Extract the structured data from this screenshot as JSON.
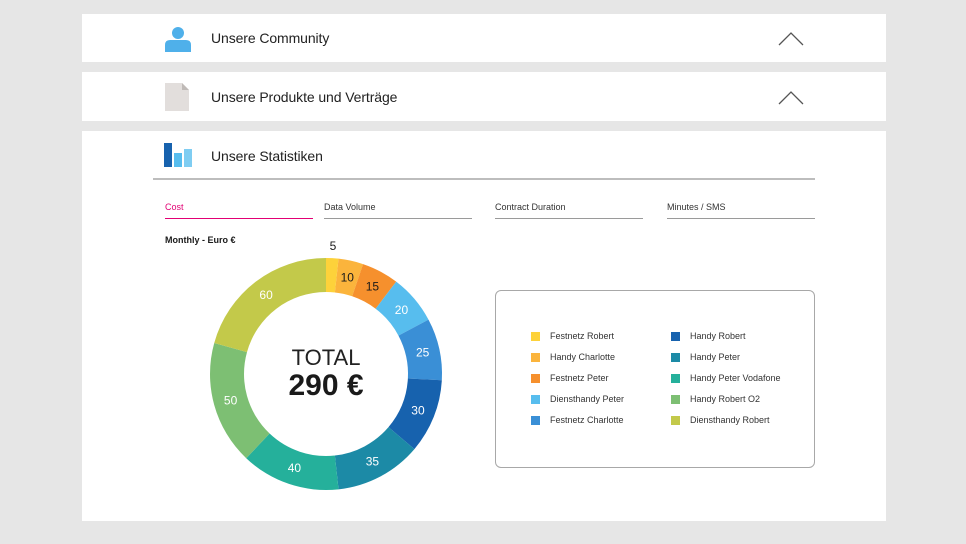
{
  "sections": {
    "community": {
      "title": "Unsere Community",
      "icon": "user-icon",
      "chevron": "chevron-up-icon"
    },
    "products": {
      "title": "Unsere Produkte und Verträge",
      "icon": "document-icon",
      "chevron": "chevron-up-icon"
    },
    "statistics": {
      "title": "Unsere Statistiken",
      "icon": "bar-chart-icon"
    }
  },
  "tabs": [
    {
      "label": "Cost",
      "active": true
    },
    {
      "label": "Data Volume",
      "active": false
    },
    {
      "label": "Contract Duration",
      "active": false
    },
    {
      "label": "Minutes / SMS",
      "active": false
    }
  ],
  "chart_subtitle": "Monthly - Euro €",
  "accent_color": "#e20074",
  "chart_data": {
    "type": "donut",
    "center_title": "TOTAL",
    "center_value": "290 €",
    "total": 290,
    "segments": [
      {
        "name": "Festnetz Robert",
        "value": 5,
        "label": "5",
        "color": "#fdd23a"
      },
      {
        "name": "Handy Charlotte",
        "value": 10,
        "label": "10",
        "color": "#fbb43c"
      },
      {
        "name": "Festnetz  Peter",
        "value": 15,
        "label": "15",
        "color": "#f6902d"
      },
      {
        "name": "Diensthandy Peter",
        "value": 20,
        "label": "20",
        "color": "#57bdee"
      },
      {
        "name": "Festnetz Charlotte",
        "value": 25,
        "label": "25",
        "color": "#3a8fd6"
      },
      {
        "name": "Handy Robert",
        "value": 30,
        "label": "30",
        "color": "#1762ae"
      },
      {
        "name": "Handy Peter",
        "value": 35,
        "label": "35",
        "color": "#1c8aa6"
      },
      {
        "name": "Handy Peter Vodafone",
        "value": 40,
        "label": "40",
        "color": "#25b09b"
      },
      {
        "name": "Handy Robert O2",
        "value": 50,
        "label": "50",
        "color": "#7dbf73"
      },
      {
        "name": "Diensthandy Robert",
        "value": 60,
        "label": "60",
        "color": "#c3c94a"
      }
    ]
  },
  "legend": [
    {
      "label": "Festnetz Robert",
      "color": "#fdd23a"
    },
    {
      "label": "Handy Charlotte",
      "color": "#fbb43c"
    },
    {
      "label": "Festnetz  Peter",
      "color": "#f6902d"
    },
    {
      "label": "Diensthandy Peter",
      "color": "#57bdee"
    },
    {
      "label": "Festnetz Charlotte",
      "color": "#3a8fd6"
    },
    {
      "label": "Handy Robert",
      "color": "#1762ae"
    },
    {
      "label": "Handy Peter",
      "color": "#1c8aa6"
    },
    {
      "label": "Handy Peter Vodafone",
      "color": "#25b09b"
    },
    {
      "label": "Handy Robert O2",
      "color": "#7dbf73"
    },
    {
      "label": "Diensthandy Robert",
      "color": "#c3c94a"
    }
  ]
}
